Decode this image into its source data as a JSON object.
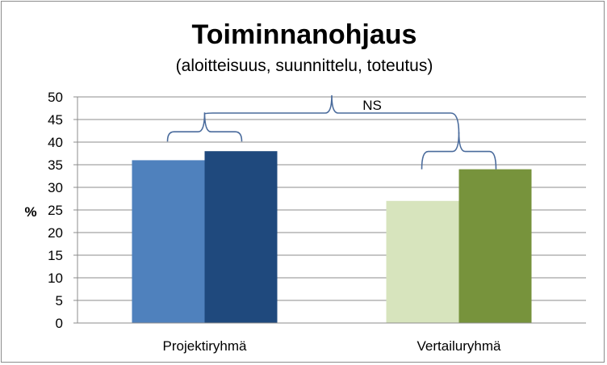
{
  "chart_data": {
    "type": "bar",
    "title": "Toiminnanohjaus",
    "subtitle": "(aloitteisuus, suunnittelu, toteutus)",
    "ylabel": "%",
    "xlabel": "",
    "ylim": [
      0,
      50
    ],
    "yticks": [
      0,
      5,
      10,
      15,
      20,
      25,
      30,
      35,
      40,
      45,
      50
    ],
    "grid": true,
    "legend": "none",
    "groups": [
      {
        "category": "Projektiryhmä",
        "bars": [
          {
            "value": 36,
            "color": "#4f81bd"
          },
          {
            "value": 38,
            "color": "#1f497d"
          }
        ]
      },
      {
        "category": "Vertailuryhmä",
        "bars": [
          {
            "value": 27,
            "color": "#d7e4bd"
          },
          {
            "value": 34,
            "color": "#77933c"
          }
        ]
      }
    ],
    "annotations": [
      {
        "text": "NS"
      }
    ]
  }
}
